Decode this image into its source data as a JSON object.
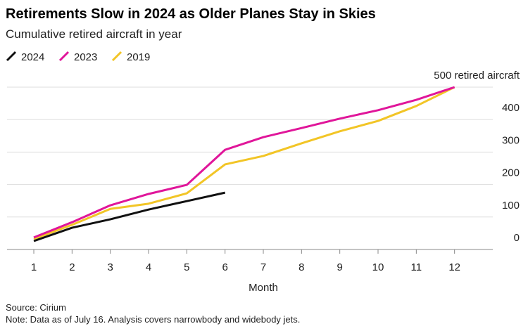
{
  "chart_data": {
    "type": "line",
    "title": "Retirements Slow in 2024 as Older Planes Stay in Skies",
    "subtitle": "Cumulative retired aircraft in year",
    "x_label": "Month",
    "source": "Source: Cirium",
    "note": "Note: Data as of July 16. Analysis covers narrowbody and widebody jets.",
    "x": [
      1,
      2,
      3,
      4,
      5,
      6,
      7,
      8,
      9,
      10,
      11,
      12
    ],
    "xlim": [
      0.3,
      13
    ],
    "xticks": [
      1,
      2,
      3,
      4,
      5,
      6,
      7,
      8,
      9,
      10,
      11,
      12
    ],
    "ylim": [
      0,
      500
    ],
    "yticks": [
      0,
      100,
      200,
      300,
      400,
      {
        "value": 500,
        "label": "500 retired aircraft"
      }
    ],
    "grid": true,
    "series": [
      {
        "name": "2024",
        "color": "#111111",
        "values": [
          26,
          67,
          93,
          123,
          149,
          175,
          null,
          null,
          null,
          null,
          null,
          null
        ]
      },
      {
        "name": "2023",
        "color": "#e0169a",
        "values": [
          37,
          84,
          136,
          171,
          199,
          307,
          346,
          374,
          403,
          429,
          461,
          500
        ]
      },
      {
        "name": "2019",
        "color": "#f2c526",
        "values": [
          32,
          76,
          125,
          141,
          173,
          262,
          288,
          327,
          364,
          396,
          442,
          500
        ]
      }
    ]
  }
}
